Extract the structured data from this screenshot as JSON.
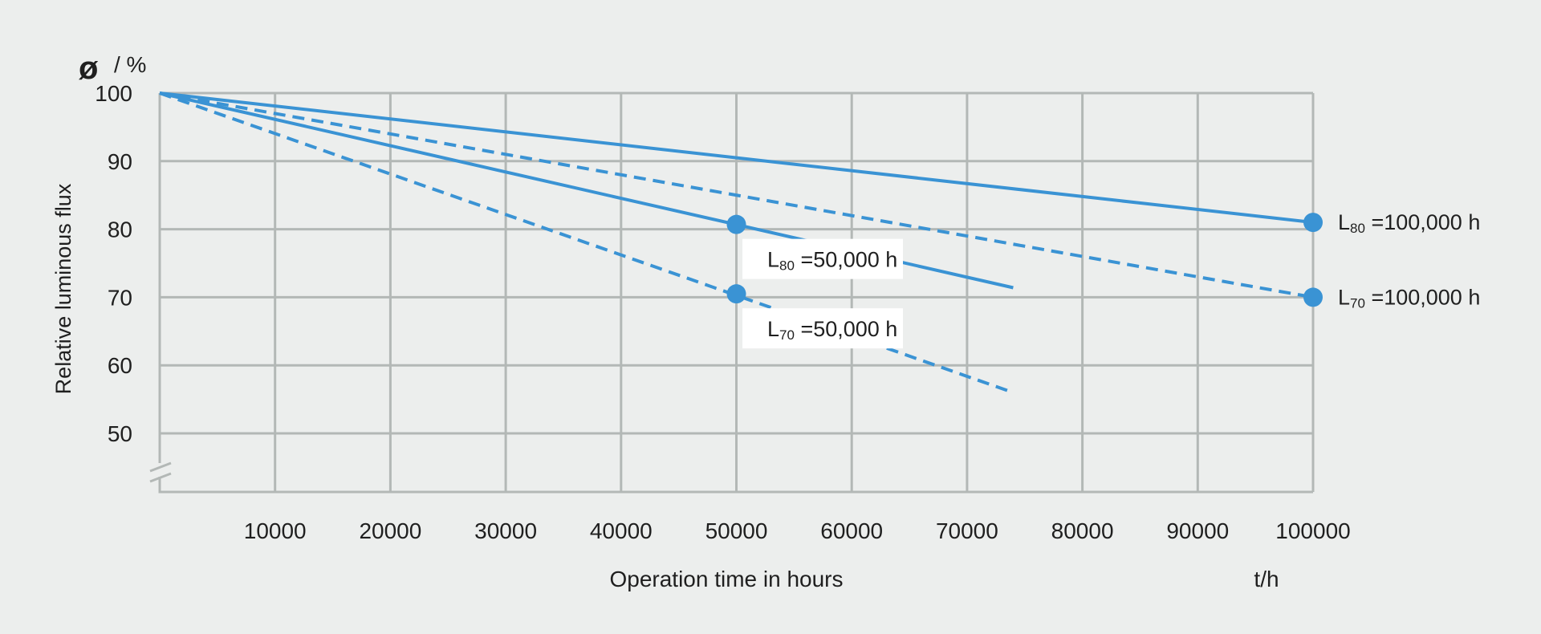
{
  "chart_data": {
    "type": "line",
    "title": "",
    "xlabel": "Operation time in hours",
    "x_unit": "t/h",
    "ylabel": "Relative luminous flux",
    "y_symbol": "ø",
    "y_unit": "/ %",
    "xlim": [
      0,
      100000
    ],
    "ylim": [
      50,
      100
    ],
    "y_axis_break": true,
    "grid": true,
    "x_ticks": [
      10000,
      20000,
      30000,
      40000,
      50000,
      60000,
      70000,
      80000,
      90000,
      100000
    ],
    "y_ticks": [
      50,
      60,
      70,
      80,
      90,
      100
    ],
    "series": [
      {
        "style": "solid",
        "x": [
          0,
          100000
        ],
        "y": [
          100,
          81
        ]
      },
      {
        "style": "dashed",
        "x": [
          0,
          100000
        ],
        "y": [
          100,
          70
        ]
      },
      {
        "style": "solid",
        "x": [
          0,
          74000
        ],
        "y": [
          100,
          71.4
        ]
      },
      {
        "style": "dashed",
        "x": [
          0,
          74000
        ],
        "y": [
          100,
          56
        ]
      }
    ],
    "markers": [
      {
        "x": 100000,
        "y": 81,
        "label_main": "L",
        "label_sub": "80",
        "label_rest": " =100,000 h"
      },
      {
        "x": 100000,
        "y": 70,
        "label_main": "L",
        "label_sub": "70",
        "label_rest": " =100,000 h"
      },
      {
        "x": 50000,
        "y": 80.7,
        "label_main": "L",
        "label_sub": "80",
        "label_rest": " =50,000 h"
      },
      {
        "x": 50000,
        "y": 70.5,
        "label_main": "L",
        "label_sub": "70",
        "label_rest": " =50,000 h"
      }
    ],
    "colors": {
      "series": "#3a93d4",
      "grid": "#b3b8b6",
      "panel": "#eceeed",
      "label_box": "#ffffff"
    }
  }
}
